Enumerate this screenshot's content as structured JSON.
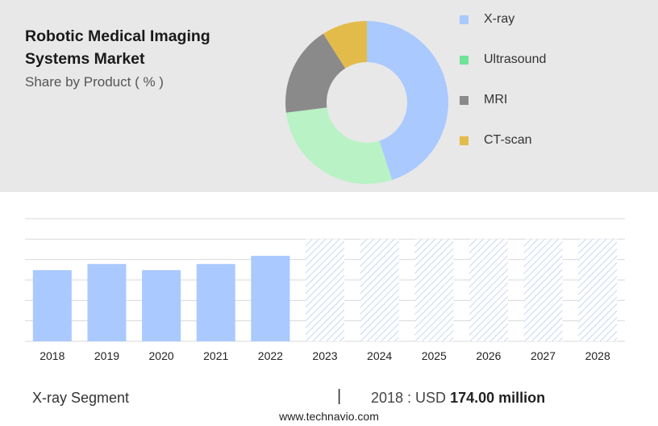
{
  "header": {
    "title": "Robotic Medical Imaging Systems Market",
    "subtitle": "Share by Product ( % )"
  },
  "legend": {
    "items": [
      {
        "label": "X-ray",
        "color": "#a9c9ff"
      },
      {
        "label": "Ultrasound",
        "color": "#6fe39a"
      },
      {
        "label": "MRI",
        "color": "#8a8a8a"
      },
      {
        "label": "CT-scan",
        "color": "#e3bb4b"
      }
    ]
  },
  "footer": {
    "segment_label": "X-ray Segment",
    "divider": "|",
    "value_prefix": "2018 : USD ",
    "value_bold": "174.00 million",
    "source": "www.technavio.com"
  },
  "chart_data": [
    {
      "type": "pie",
      "donut": true,
      "categories": [
        "X-ray",
        "Ultrasound",
        "MRI",
        "CT-scan"
      ],
      "values": [
        45,
        28,
        18,
        9
      ],
      "colors": [
        "#a9c9ff",
        "#b9f2c4",
        "#8a8a8a",
        "#e3bb4b"
      ]
    },
    {
      "type": "bar",
      "categories": [
        "2018",
        "2019",
        "2020",
        "2021",
        "2022",
        "2023",
        "2024",
        "2025",
        "2026",
        "2027",
        "2028"
      ],
      "values": [
        174,
        189,
        174,
        189,
        209,
        null,
        null,
        null,
        null,
        null,
        null
      ],
      "forecast": [
        false,
        false,
        false,
        false,
        false,
        true,
        true,
        true,
        true,
        true,
        true
      ],
      "ylim": [
        0,
        300
      ],
      "grid": true,
      "bar_color": "#a9c9ff",
      "forecast_color": "#c8d6f0"
    }
  ]
}
